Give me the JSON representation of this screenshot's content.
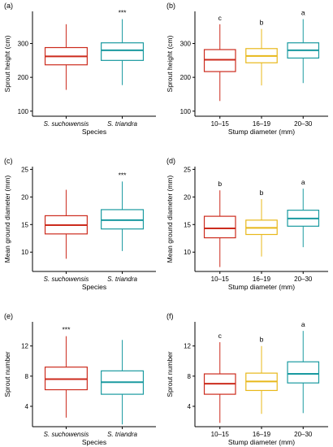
{
  "colors": {
    "red": "#cc2b1d",
    "teal": "#1a9aa0",
    "yellow": "#e8b81a"
  },
  "chart_data": [
    {
      "type": "box",
      "tag": "(a)",
      "categories": [
        "S. suchowensis",
        "S. triandra"
      ],
      "italic": true,
      "colors": [
        "#cc2b1d",
        "#1a9aa0"
      ],
      "xlabel": "Species",
      "ylabel": "Sprout height (cm)",
      "ylim": [
        85,
        395
      ],
      "yticks": [
        "100",
        "200",
        "300"
      ],
      "boxes": [
        {
          "min": 163,
          "q1": 237,
          "median": 262,
          "q3": 288,
          "max": 357
        },
        {
          "min": 177,
          "q1": 250,
          "median": 280,
          "q3": 302,
          "max": 372
        }
      ],
      "sig": [
        "",
        "***"
      ]
    },
    {
      "type": "box",
      "tag": "(b)",
      "categories": [
        "10–15",
        "16–19",
        "20–30"
      ],
      "italic": false,
      "colors": [
        "#cc2b1d",
        "#e8b81a",
        "#1a9aa0"
      ],
      "xlabel": "Stump diameter (mm)",
      "ylabel": "Sprout height (cm)",
      "ylim": [
        85,
        395
      ],
      "yticks": [
        "100",
        "200",
        "300"
      ],
      "boxes": [
        {
          "min": 130,
          "q1": 217,
          "median": 252,
          "q3": 282,
          "max": 357
        },
        {
          "min": 176,
          "q1": 243,
          "median": 263,
          "q3": 285,
          "max": 343
        },
        {
          "min": 183,
          "q1": 257,
          "median": 280,
          "q3": 302,
          "max": 372
        }
      ],
      "sig": [
        "c",
        "b",
        "a"
      ]
    },
    {
      "type": "box",
      "tag": "(c)",
      "categories": [
        "S. suchowensis",
        "S. triandra"
      ],
      "italic": true,
      "colors": [
        "#cc2b1d",
        "#1a9aa0"
      ],
      "xlabel": "Species",
      "ylabel": "Mean ground diameter (mm)",
      "ylim": [
        6.5,
        25.5
      ],
      "yticks": [
        "10",
        "15",
        "20",
        "25"
      ],
      "boxes": [
        {
          "min": 8.8,
          "q1": 13.3,
          "median": 14.9,
          "q3": 16.6,
          "max": 21.3
        },
        {
          "min": 10.2,
          "q1": 14.2,
          "median": 15.8,
          "q3": 17.7,
          "max": 22.8
        }
      ],
      "sig": [
        "",
        "***"
      ]
    },
    {
      "type": "box",
      "tag": "(d)",
      "categories": [
        "10–15",
        "16–19",
        "20–30"
      ],
      "italic": false,
      "colors": [
        "#cc2b1d",
        "#e8b81a",
        "#1a9aa0"
      ],
      "xlabel": "Stump diameter (mm)",
      "ylabel": "Mean ground diameter (mm)",
      "ylim": [
        6.5,
        25.5
      ],
      "yticks": [
        "10",
        "15",
        "20",
        "25"
      ],
      "boxes": [
        {
          "min": 7.3,
          "q1": 12.6,
          "median": 14.3,
          "q3": 16.5,
          "max": 21.2
        },
        {
          "min": 9.2,
          "q1": 13.2,
          "median": 14.4,
          "q3": 15.8,
          "max": 19.6
        },
        {
          "min": 10.9,
          "q1": 14.7,
          "median": 16.1,
          "q3": 17.6,
          "max": 21.5
        }
      ],
      "sig": [
        "b",
        "b",
        "a"
      ]
    },
    {
      "type": "box",
      "tag": "(e)",
      "categories": [
        "S. suchowensis",
        "S. triandra"
      ],
      "italic": true,
      "colors": [
        "#cc2b1d",
        "#1a9aa0"
      ],
      "xlabel": "Species",
      "ylabel": "Sprout number",
      "ylim": [
        1.3,
        15.2
      ],
      "yticks": [
        "4",
        "8",
        "12"
      ],
      "boxes": [
        {
          "min": 2.5,
          "q1": 6.2,
          "median": 7.6,
          "q3": 9.2,
          "max": 13.3
        },
        {
          "min": 1.6,
          "q1": 5.6,
          "median": 7.2,
          "q3": 8.7,
          "max": 12.8
        }
      ],
      "sig": [
        "***",
        ""
      ]
    },
    {
      "type": "box",
      "tag": "(f)",
      "categories": [
        "10–15",
        "16–19",
        "20–30"
      ],
      "italic": false,
      "colors": [
        "#cc2b1d",
        "#e8b81a",
        "#1a9aa0"
      ],
      "xlabel": "Stump diameter (mm)",
      "ylabel": "Sprout number",
      "ylim": [
        1.3,
        15.2
      ],
      "yticks": [
        "4",
        "8",
        "12"
      ],
      "boxes": [
        {
          "min": 1.8,
          "q1": 5.6,
          "median": 7.0,
          "q3": 8.3,
          "max": 12.5
        },
        {
          "min": 3.0,
          "q1": 6.1,
          "median": 7.3,
          "q3": 8.4,
          "max": 12.0
        },
        {
          "min": 3.1,
          "q1": 7.1,
          "median": 8.3,
          "q3": 9.9,
          "max": 14.0
        }
      ],
      "sig": [
        "c",
        "b",
        "a"
      ]
    }
  ]
}
